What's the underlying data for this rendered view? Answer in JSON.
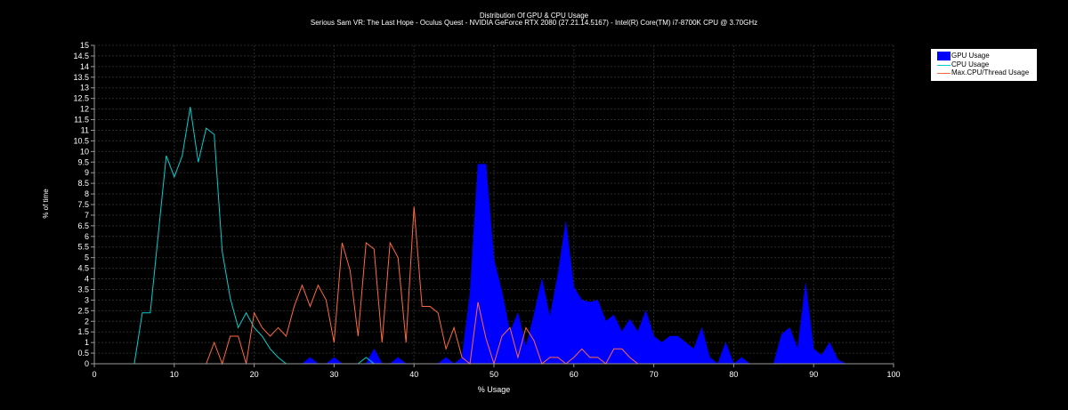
{
  "chart_data": {
    "type": "area",
    "title": "Distribution Of GPU & CPU Usage",
    "subtitle": "Serious Sam VR: The Last Hope - Oculus Quest - NVIDIA GeForce RTX 2080 (27.21.14.5167) - Intel(R) Core(TM) i7-8700K CPU @ 3.70GHz",
    "xlabel": "% Usage",
    "ylabel": "% of time",
    "xlim": [
      0,
      100
    ],
    "ylim": [
      0,
      15
    ],
    "x_ticks": [
      0,
      10,
      20,
      30,
      40,
      50,
      60,
      70,
      80,
      90,
      100
    ],
    "y_ticks": [
      0,
      0.5,
      1,
      1.5,
      2,
      2.5,
      3,
      3.5,
      4,
      4.5,
      5,
      5.5,
      6,
      6.5,
      7,
      7.5,
      8,
      8.5,
      9,
      9.5,
      10,
      10.5,
      11,
      11.5,
      12,
      12.5,
      13,
      13.5,
      14,
      14.5,
      15
    ],
    "grid": true,
    "legend_position": "top-right",
    "background": "#000000",
    "series": [
      {
        "name": "GPU Usage",
        "kind": "area",
        "color": "#0000ff",
        "x": [
          0,
          25,
          26,
          27,
          28,
          29,
          30,
          31,
          32,
          33,
          34,
          35,
          36,
          37,
          38,
          39,
          40,
          41,
          42,
          43,
          44,
          45,
          46,
          47,
          48,
          49,
          50,
          51,
          52,
          53,
          54,
          55,
          56,
          57,
          58,
          59,
          60,
          61,
          62,
          63,
          64,
          65,
          66,
          67,
          68,
          69,
          70,
          71,
          72,
          73,
          74,
          75,
          76,
          77,
          78,
          79,
          80,
          81,
          82,
          83,
          84,
          85,
          86,
          87,
          88,
          89,
          90,
          91,
          92,
          93,
          94,
          95,
          100
        ],
        "values": [
          0,
          0,
          0,
          0.3,
          0,
          0,
          0.3,
          0,
          0,
          0,
          0,
          0.7,
          0,
          0,
          0.3,
          0,
          0,
          0,
          0,
          0,
          0.3,
          0,
          0.3,
          3.3,
          9.4,
          9.4,
          4.9,
          3.4,
          1.5,
          2.4,
          0.8,
          2.3,
          4.0,
          2.2,
          4.2,
          6.7,
          3.6,
          3.0,
          2.9,
          3.0,
          2.0,
          2.3,
          1.5,
          2.1,
          1.5,
          2.5,
          1.3,
          1.0,
          1.3,
          1.3,
          1.0,
          0.7,
          1.7,
          0.3,
          0,
          1.0,
          0,
          0.3,
          0,
          0,
          0,
          0,
          1.4,
          1.7,
          0.7,
          3.8,
          0.7,
          0.4,
          1.0,
          0.2,
          0,
          0,
          0
        ]
      },
      {
        "name": "CPU Usage",
        "kind": "line",
        "color": "#00cfcf",
        "x": [
          0,
          5,
          6,
          7,
          8,
          9,
          10,
          11,
          12,
          13,
          14,
          15,
          16,
          17,
          18,
          19,
          20,
          21,
          22,
          23,
          24,
          25,
          26,
          27,
          28,
          29,
          30,
          31,
          32,
          33,
          34,
          35,
          36,
          100
        ],
        "values": [
          0,
          0,
          2.4,
          2.4,
          6.1,
          9.8,
          8.8,
          9.8,
          12.1,
          9.5,
          11.1,
          10.8,
          5.3,
          3.1,
          1.7,
          2.4,
          1.7,
          1.3,
          0.7,
          0.3,
          0,
          0,
          0,
          0,
          0,
          0,
          0,
          0,
          0,
          0,
          0.3,
          0,
          0,
          0
        ]
      },
      {
        "name": "Max.CPU/Thread Usage",
        "kind": "line",
        "color": "#ff6a3c",
        "x": [
          0,
          14,
          15,
          16,
          17,
          18,
          19,
          20,
          21,
          22,
          23,
          24,
          25,
          26,
          27,
          28,
          29,
          30,
          31,
          32,
          33,
          34,
          35,
          36,
          37,
          38,
          39,
          40,
          41,
          42,
          43,
          44,
          45,
          46,
          47,
          48,
          49,
          50,
          51,
          52,
          53,
          54,
          55,
          56,
          57,
          58,
          59,
          60,
          61,
          62,
          63,
          64,
          65,
          66,
          67,
          68,
          69,
          100
        ],
        "values": [
          0,
          0,
          1.0,
          0,
          1.3,
          1.3,
          0,
          2.4,
          1.7,
          1.3,
          1.7,
          1.3,
          2.7,
          3.7,
          2.7,
          3.7,
          3.0,
          1.0,
          5.7,
          4.4,
          1.3,
          5.7,
          5.4,
          1.0,
          5.7,
          5.0,
          1.0,
          7.4,
          2.7,
          2.7,
          2.4,
          0.7,
          1.7,
          0.3,
          0,
          2.9,
          1.2,
          0,
          1.3,
          1.7,
          0.3,
          1.7,
          1.1,
          0,
          0.3,
          0.3,
          0,
          0.3,
          0.7,
          0.3,
          0.3,
          0,
          0.7,
          0.7,
          0.3,
          0,
          0,
          0
        ]
      }
    ]
  }
}
